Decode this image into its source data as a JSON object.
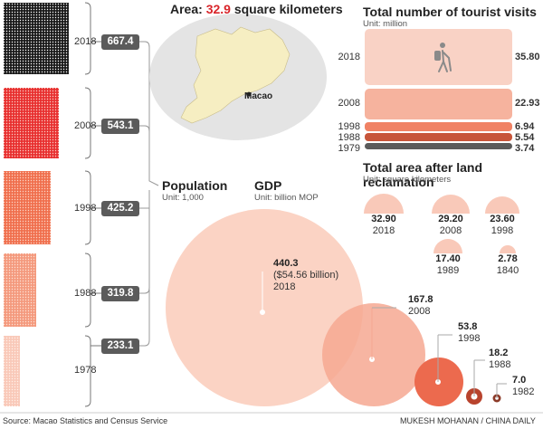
{
  "area": {
    "label": "Area:",
    "value": "32.9",
    "unit": "square kilometers"
  },
  "map": {
    "place_label": "Macao"
  },
  "population": {
    "title": "Population",
    "unit": "Unit: 1,000"
  },
  "tourism": {
    "title": "Total number of tourist visits",
    "unit": "Unit: million"
  },
  "reclamation": {
    "title": "Total area after land reclamation",
    "unit": "Unit: square kilometers"
  },
  "gdp": {
    "title": "GDP",
    "unit": "Unit: billion MOP",
    "note_2018": "($54.56 billion)"
  },
  "footer": {
    "source": "Source: Macao Statistics and Census Service",
    "credit": "MUKESH MOHANAN / CHINA DAILY"
  },
  "colors": {
    "accent": "#d9262b",
    "dark": "#5b5b5b",
    "pop_2018": "#1a1a1a",
    "pop_2008": "#e83030",
    "pop_1998": "#f0704e",
    "pop_1988": "#f49a7e",
    "pop_1978": "#f9c9b9",
    "gdp_fill": "#f9c4b2",
    "gdp_mid": "#f5957c",
    "gdp_dark": "#e8634a",
    "gdp_darkest": "#b8432d"
  },
  "chart_data": [
    {
      "type": "bar",
      "title": "Population",
      "unit": "Unit: 1,000",
      "categories": [
        "2018",
        "2008",
        "1998",
        "1988",
        "1978"
      ],
      "values": [
        "667.4",
        "543.1",
        "425.2",
        "319.8",
        "233.1"
      ]
    },
    {
      "type": "bar",
      "title": "Total number of tourist visits",
      "unit": "Unit: million",
      "categories": [
        "2018",
        "2008",
        "1998",
        "1988",
        "1979"
      ],
      "values": [
        "35.80",
        "22.93",
        "6.94",
        "5.54",
        "3.74"
      ]
    },
    {
      "type": "pie",
      "title": "Total area after land reclamation",
      "unit": "Unit: square kilometers",
      "categories": [
        "2018",
        "2008",
        "1998",
        "1989",
        "1840"
      ],
      "values": [
        "32.90",
        "29.20",
        "23.60",
        "17.40",
        "2.78"
      ]
    },
    {
      "type": "scatter",
      "title": "GDP",
      "unit": "Unit: billion MOP",
      "categories": [
        "2018",
        "2008",
        "1998",
        "1988",
        "1982"
      ],
      "values": [
        "440.3",
        "167.8",
        "53.8",
        "18.2",
        "7.0"
      ]
    }
  ]
}
